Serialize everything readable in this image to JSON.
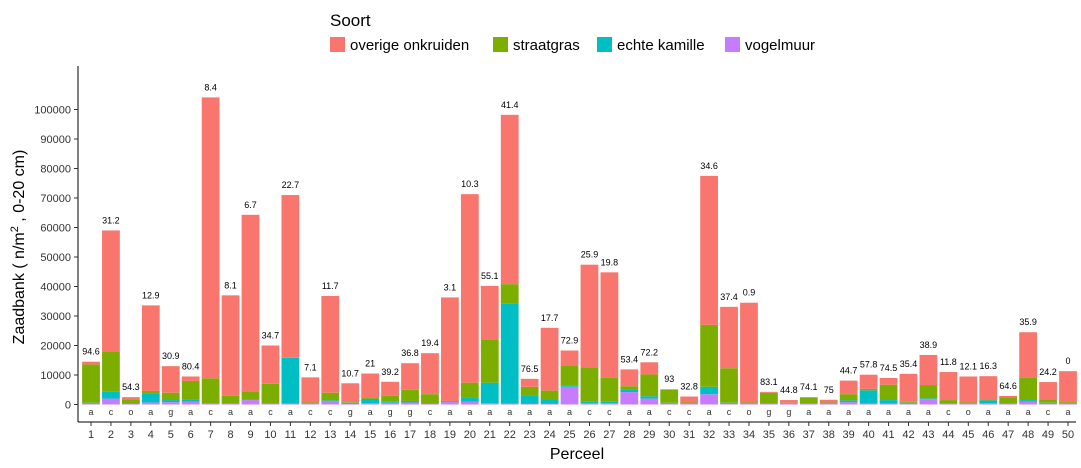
{
  "chart_data": {
    "type": "bar",
    "stacked": true,
    "xlabel": "Perceel",
    "ylabel_parts": {
      "before": "Zaadbank ( n/m",
      "superscript": "2",
      "after": " , 0-20 cm)"
    },
    "ylim": [
      0,
      110000
    ],
    "yticks": [
      0,
      10000,
      20000,
      30000,
      40000,
      50000,
      60000,
      70000,
      80000,
      90000,
      100000
    ],
    "grid": false,
    "legend": {
      "title": "Soort",
      "position": "top",
      "entries": [
        "overige onkruiden",
        "straatgras",
        "echte kamille",
        "vogelmuur"
      ]
    },
    "colors": {
      "overige onkruiden": "#F8766D",
      "straatgras": "#7CAE00",
      "echte kamille": "#00BFC4",
      "vogelmuur": "#C77CFF"
    },
    "categories": [
      "1",
      "2",
      "3",
      "4",
      "5",
      "6",
      "7",
      "8",
      "9",
      "10",
      "11",
      "12",
      "13",
      "14",
      "15",
      "16",
      "17",
      "18",
      "19",
      "20",
      "21",
      "22",
      "23",
      "24",
      "25",
      "26",
      "27",
      "28",
      "29",
      "30",
      "31",
      "32",
      "33",
      "34",
      "35",
      "36",
      "37",
      "38",
      "39",
      "40",
      "41",
      "42",
      "43",
      "44",
      "45",
      "46",
      "47",
      "48",
      "49",
      "50"
    ],
    "bar_top_labels": [
      "94.6",
      "31.2",
      "54.3",
      "12.9",
      "30.9",
      "80.4",
      "8.4",
      "8.1",
      "6.7",
      "34.7",
      "22.7",
      "7.1",
      "11.7",
      "10.7",
      "21",
      "39.2",
      "36.8",
      "19.4",
      "3.1",
      "10.3",
      "55.1",
      "41.4",
      "76.5",
      "17.7",
      "72.9",
      "25.9",
      "19.8",
      "53.4",
      "72.2",
      "93",
      "32.8",
      "34.6",
      "37.4",
      "0.9",
      "83.1",
      "44.8",
      "74.1",
      "75",
      "44.7",
      "57.8",
      "74.5",
      "35.4",
      "38.9",
      "11.8",
      "12.1",
      "16.3",
      "64.6",
      "35.9",
      "24.2",
      "0"
    ],
    "under_bar_labels": [
      "a",
      "c",
      "o",
      "a",
      "g",
      "a",
      "c",
      "a",
      "a",
      "c",
      "a",
      "c",
      "c",
      "g",
      "a",
      "g",
      "g",
      "c",
      "a",
      "a",
      "a",
      "a",
      "a",
      "a",
      "a",
      "c",
      "c",
      "a",
      "a",
      "c",
      "c",
      "a",
      "c",
      "o",
      "g",
      "g",
      "a",
      "a",
      "a",
      "a",
      "a",
      "a",
      "a",
      "c",
      "o",
      "a",
      "a",
      "a",
      "c",
      "a"
    ],
    "series": [
      {
        "name": "vogelmuur",
        "values": [
          300,
          2000,
          200,
          700,
          800,
          1000,
          200,
          300,
          1500,
          300,
          300,
          200,
          1200,
          200,
          500,
          600,
          700,
          200,
          800,
          900,
          400,
          300,
          200,
          200,
          6000,
          400,
          400,
          4200,
          2000,
          300,
          300,
          3500,
          300,
          200,
          300,
          200,
          300,
          200,
          800,
          300,
          300,
          300,
          1800,
          300,
          300,
          400,
          300,
          1000,
          300,
          300
        ]
      },
      {
        "name": "echte kamille",
        "values": [
          300,
          2500,
          300,
          3000,
          700,
          800,
          200,
          200,
          300,
          200,
          15500,
          200,
          200,
          400,
          1400,
          500,
          500,
          300,
          200,
          1500,
          7000,
          34000,
          2700,
          1500,
          300,
          500,
          500,
          1000,
          800,
          300,
          200,
          2500,
          300,
          200,
          200,
          200,
          200,
          200,
          600,
          4500,
          1200,
          300,
          300,
          200,
          200,
          1000,
          200,
          500,
          300,
          200
        ]
      },
      {
        "name": "straatgras",
        "values": [
          13000,
          13500,
          1300,
          900,
          2500,
          6200,
          8500,
          2500,
          2700,
          6500,
          200,
          300,
          2600,
          200,
          300,
          1900,
          3800,
          3000,
          200,
          5000,
          14700,
          6500,
          3100,
          3000,
          7000,
          11700,
          8100,
          1000,
          7400,
          4400,
          200,
          21000,
          11700,
          300,
          3500,
          200,
          1700,
          300,
          2100,
          500,
          5200,
          300,
          4500,
          1000,
          200,
          400,
          2000,
          7500,
          1200,
          300
        ]
      },
      {
        "name": "overige onkruiden",
        "values": [
          900,
          41000,
          700,
          29000,
          9000,
          1500,
          95200,
          34000,
          59800,
          13000,
          55000,
          8500,
          32800,
          6400,
          8300,
          4700,
          9000,
          13900,
          35100,
          63900,
          18100,
          57400,
          2700,
          21300,
          5000,
          34800,
          35800,
          5700,
          4100,
          200,
          2000,
          50500,
          20800,
          33800,
          300,
          900,
          300,
          900,
          4600,
          4800,
          2300,
          9500,
          10200,
          9500,
          8800,
          7800,
          400,
          15500,
          5800,
          10500
        ]
      }
    ]
  }
}
